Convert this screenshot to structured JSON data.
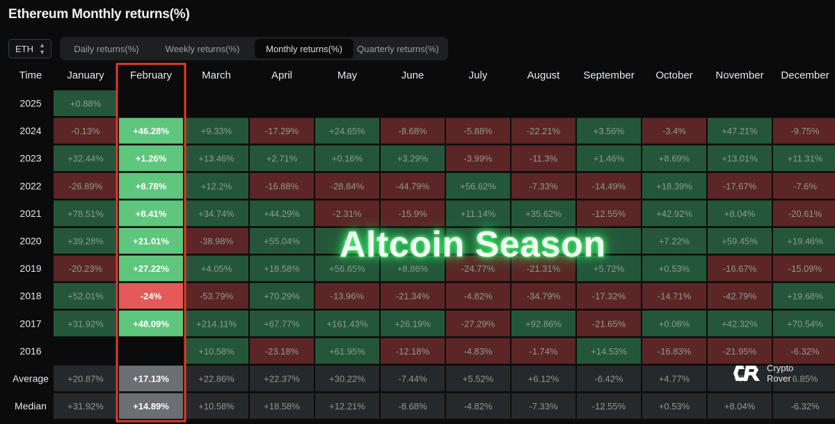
{
  "title": "Ethereum Monthly returns(%)",
  "asset_select": {
    "value": "ETH"
  },
  "tabs": [
    {
      "label": "Daily returns(%)",
      "active": false
    },
    {
      "label": "Weekly returns(%)",
      "active": false
    },
    {
      "label": "Monthly returns(%)",
      "active": true
    },
    {
      "label": "Quarterly returns(%)",
      "active": false
    }
  ],
  "watermark": "Altcoin Season",
  "brand": {
    "line1": "Crypto",
    "line2": "Rover",
    "icon": "cr-logo-icon"
  },
  "highlight": {
    "column": "February",
    "color": "#e0392c"
  },
  "colors": {
    "positive": "#24573a",
    "negative": "#5c2626",
    "highlight_positive": "#5fc67e",
    "highlight_negative": "#e55a58",
    "summary": "#26292c",
    "highlight_summary": "#6b6e72"
  },
  "chart_data": {
    "type": "heatmap",
    "title": "Ethereum Monthly returns(%)",
    "row_header": "Time",
    "columns": [
      "January",
      "February",
      "March",
      "April",
      "May",
      "June",
      "July",
      "August",
      "September",
      "October",
      "November",
      "December"
    ],
    "rows": [
      {
        "label": "2025",
        "values": [
          "+0.88%",
          "",
          "",
          "",
          "",
          "",
          "",
          "",
          "",
          "",
          "",
          ""
        ]
      },
      {
        "label": "2024",
        "values": [
          "-0.13%",
          "+46.28%",
          "+9.33%",
          "-17.29%",
          "+24.65%",
          "-8.68%",
          "-5.88%",
          "-22.21%",
          "+3.56%",
          "-3.4%",
          "+47.21%",
          "-9.75%"
        ]
      },
      {
        "label": "2023",
        "values": [
          "+32.44%",
          "+1.26%",
          "+13.46%",
          "+2.71%",
          "+0.16%",
          "+3.29%",
          "-3.99%",
          "-11.3%",
          "+1.46%",
          "+8.69%",
          "+13.01%",
          "+11.31%"
        ]
      },
      {
        "label": "2022",
        "values": [
          "-26.89%",
          "+8.78%",
          "+12.2%",
          "-16.88%",
          "-28.84%",
          "-44.79%",
          "+56.62%",
          "-7.33%",
          "-14.49%",
          "+18.39%",
          "-17.67%",
          "-7.6%"
        ]
      },
      {
        "label": "2021",
        "values": [
          "+78.51%",
          "+8.41%",
          "+34.74%",
          "+44.29%",
          "-2.31%",
          "-15.9%",
          "+11.14%",
          "+35.62%",
          "-12.55%",
          "+42.92%",
          "+8.04%",
          "-20.61%"
        ]
      },
      {
        "label": "2020",
        "values": [
          "+39.28%",
          "+21.01%",
          "-38.98%",
          "+55.04%",
          "+1",
          "",
          "",
          "",
          "",
          "+7.22%",
          "+59.45%",
          "+19.46%"
        ]
      },
      {
        "label": "2019",
        "values": [
          "-20.23%",
          "+27.22%",
          "+4.05%",
          "+18.58%",
          "+56.65%",
          "+8.86%",
          "-24.77%",
          "-21.31%",
          "+5.72%",
          "+0.53%",
          "-16.67%",
          "-15.09%"
        ]
      },
      {
        "label": "2018",
        "values": [
          "+52.01%",
          "-24%",
          "-53.79%",
          "+70.29%",
          "-13.96%",
          "-21.34%",
          "-4.82%",
          "-34.79%",
          "-17.32%",
          "-14.71%",
          "-42.79%",
          "+19.68%"
        ]
      },
      {
        "label": "2017",
        "values": [
          "+31.92%",
          "+48.09%",
          "+214.11%",
          "+67.77%",
          "+161.43%",
          "+26.19%",
          "-27.29%",
          "+92.86%",
          "-21.65%",
          "+0.08%",
          "+42.32%",
          "+70.54%"
        ]
      },
      {
        "label": "2016",
        "values": [
          "",
          "",
          "+10.58%",
          "-23.18%",
          "+61.95%",
          "-12.18%",
          "-4.83%",
          "-1.74%",
          "+14.53%",
          "-16.83%",
          "-21.95%",
          "-6.32%"
        ]
      }
    ],
    "summary_rows": [
      {
        "label": "Average",
        "values": [
          "+20.87%",
          "+17.13%",
          "+22.86%",
          "+22.37%",
          "+30.22%",
          "-7.44%",
          "+5.52%",
          "+6.12%",
          "-6.42%",
          "+4.77%",
          "+7.",
          "6.85%"
        ]
      },
      {
        "label": "Median",
        "values": [
          "+31.92%",
          "+14.89%",
          "+10.58%",
          "+18.58%",
          "+12.21%",
          "-8.68%",
          "-4.82%",
          "-7.33%",
          "-12.55%",
          "+0.53%",
          "+8.04%",
          "-6.32%"
        ]
      }
    ],
    "row_signs": {
      "2020": [
        "+",
        "+",
        "-",
        "+",
        "+",
        "+",
        "+",
        "+",
        "+",
        "+",
        "+",
        "+"
      ]
    }
  }
}
